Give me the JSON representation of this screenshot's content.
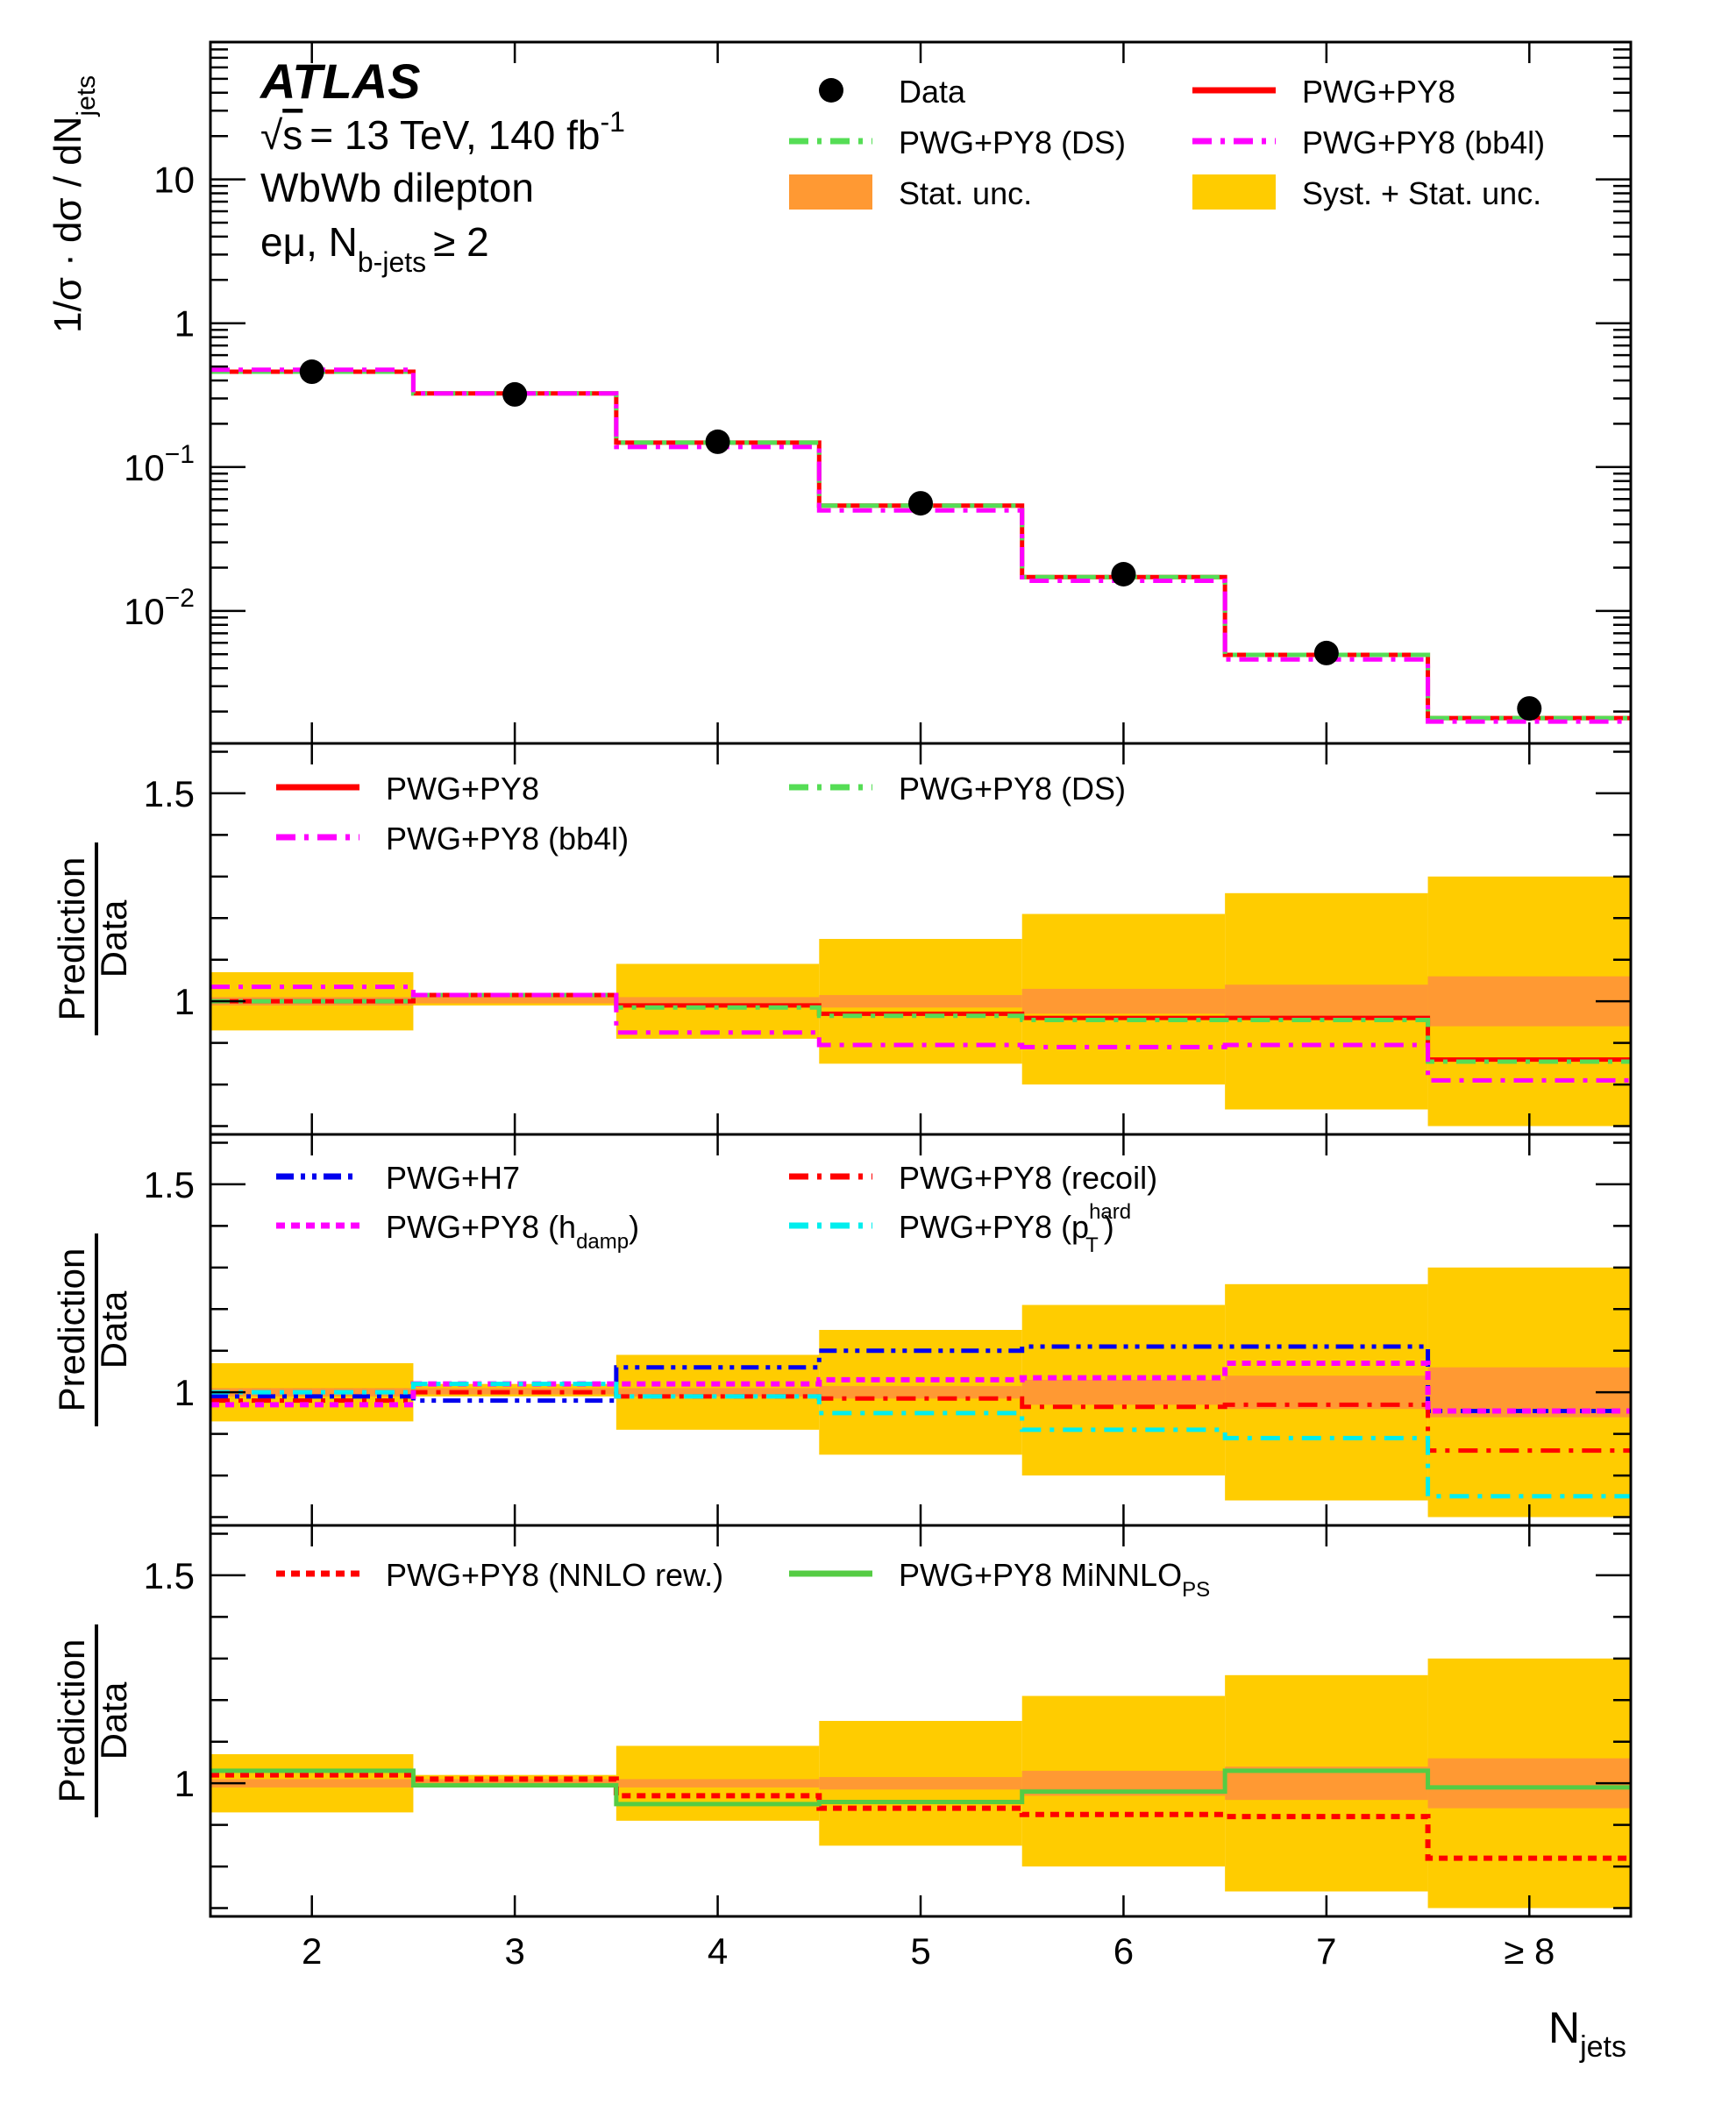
{
  "colors": {
    "data": "#000000",
    "pwg_py8": "#ff0000",
    "ds": "#55dd55",
    "bb4l": "#ff00ff",
    "stat_unc": "#ff9933",
    "syst_stat_unc": "#ffcc00",
    "h7": "#0000ee",
    "recoil": "#ff0000",
    "hdamp": "#ff00ff",
    "pthard": "#00eeee",
    "nnlo": "#ff0000",
    "minnlo": "#55cc44"
  },
  "chart_data": {
    "type": "line",
    "annotations": {
      "experiment": "ATLAS",
      "energy_sqrt": "s",
      "energy_rest": "= 13 TeV, 140 fb",
      "energy_sup": "-1",
      "channel": "WbWb dilepton",
      "selection_main": "eμ, N",
      "selection_sub": "b-jets",
      "selection_rest": "≥ 2"
    },
    "x_axis": {
      "label_main": "N",
      "label_sub": "jets",
      "categories": [
        "2",
        "3",
        "4",
        "5",
        "6",
        "7",
        "≥ 8"
      ]
    },
    "top_panel": {
      "ylabel_main": "1/σ · dσ / dN",
      "ylabel_sub": "jets",
      "yscale": "log",
      "ylim": [
        0.0012,
        90
      ],
      "yticks": [
        {
          "value": 10,
          "label": "10"
        },
        {
          "value": 1,
          "label": "1"
        },
        {
          "value": 0.1,
          "base": "10",
          "exp": "−1"
        },
        {
          "value": 0.01,
          "base": "10",
          "exp": "−2"
        }
      ],
      "legend": [
        {
          "key": "data",
          "label": "Data"
        },
        {
          "key": "pwg_py8",
          "label": "PWG+PY8"
        },
        {
          "key": "ds",
          "label": "PWG+PY8 (DS)"
        },
        {
          "key": "bb4l",
          "label": "PWG+PY8 (bb4l)"
        },
        {
          "key": "stat_unc",
          "label": "Stat. unc."
        },
        {
          "key": "syst_stat_unc",
          "label": "Syst. + Stat. unc."
        }
      ],
      "data": [
        0.46,
        0.32,
        0.15,
        0.056,
        0.018,
        0.0051,
        0.0021
      ],
      "series": [
        {
          "name": "PWG+PY8",
          "key": "pwg_py8",
          "values": [
            0.46,
            0.325,
            0.148,
            0.054,
            0.0172,
            0.00495,
            0.0018
          ]
        },
        {
          "name": "PWG+PY8 (DS)",
          "key": "ds",
          "values": [
            0.46,
            0.325,
            0.148,
            0.054,
            0.0172,
            0.00495,
            0.0018
          ]
        },
        {
          "name": "PWG+PY8 (bb4l)",
          "key": "bb4l",
          "values": [
            0.475,
            0.325,
            0.138,
            0.05,
            0.0162,
            0.0046,
            0.0017
          ]
        }
      ]
    },
    "ratio_panels": [
      {
        "ylabel_top": "Prediction",
        "ylabel_bottom": "Data",
        "ylim": [
          0.68,
          1.62
        ],
        "yticks": [
          {
            "value": 1.5,
            "label": "1.5"
          },
          {
            "value": 1,
            "label": "1"
          }
        ],
        "syst_stat_band": [
          [
            0.93,
            1.07
          ],
          [
            0.99,
            1.02
          ],
          [
            0.91,
            1.09
          ],
          [
            0.85,
            1.15
          ],
          [
            0.8,
            1.21
          ],
          [
            0.74,
            1.26
          ],
          [
            0.7,
            1.3
          ]
        ],
        "stat_band": [
          [
            0.99,
            1.01
          ],
          [
            0.995,
            1.01
          ],
          [
            0.99,
            1.01
          ],
          [
            0.985,
            1.015
          ],
          [
            0.97,
            1.03
          ],
          [
            0.96,
            1.04
          ],
          [
            0.94,
            1.06
          ]
        ],
        "legend": [
          {
            "key": "pwg_py8",
            "label": "PWG+PY8",
            "style": "solid"
          },
          {
            "key": "ds",
            "label": "PWG+PY8 (DS)",
            "style": "dashdot"
          },
          {
            "key": "bb4l",
            "label": "PWG+PY8 (bb4l)",
            "style": "dashdot"
          }
        ],
        "series": [
          {
            "name": "PWG+PY8",
            "key": "pwg_py8",
            "style": "solid",
            "values": [
              1.0,
              1.015,
              0.99,
              0.97,
              0.96,
              0.96,
              0.86
            ]
          },
          {
            "name": "PWG+PY8 (DS)",
            "key": "ds",
            "style": "dashdot",
            "values": [
              1.0,
              1.015,
              0.985,
              0.965,
              0.955,
              0.955,
              0.855
            ]
          },
          {
            "name": "PWG+PY8 (bb4l)",
            "key": "bb4l",
            "style": "dashdot",
            "values": [
              1.035,
              1.015,
              0.925,
              0.895,
              0.89,
              0.895,
              0.81
            ]
          }
        ]
      },
      {
        "ylabel_top": "Prediction",
        "ylabel_bottom": "Data",
        "ylim": [
          0.68,
          1.62
        ],
        "yticks": [
          {
            "value": 1.5,
            "label": "1.5"
          },
          {
            "value": 1,
            "label": "1"
          }
        ],
        "syst_stat_band": [
          [
            0.93,
            1.07
          ],
          [
            0.99,
            1.02
          ],
          [
            0.91,
            1.09
          ],
          [
            0.85,
            1.15
          ],
          [
            0.8,
            1.21
          ],
          [
            0.74,
            1.26
          ],
          [
            0.7,
            1.3
          ]
        ],
        "stat_band": [
          [
            0.99,
            1.01
          ],
          [
            0.995,
            1.01
          ],
          [
            0.99,
            1.01
          ],
          [
            0.985,
            1.015
          ],
          [
            0.97,
            1.03
          ],
          [
            0.96,
            1.04
          ],
          [
            0.94,
            1.06
          ]
        ],
        "legend": [
          {
            "key": "h7",
            "label": "PWG+H7",
            "style": "dashdotdot"
          },
          {
            "key": "recoil",
            "label": "PWG+PY8 (recoil)",
            "style": "dashdot"
          },
          {
            "key": "hdamp",
            "label_main": "PWG+PY8 (h",
            "label_sub": "damp",
            "label_end": ")",
            "style": "dotted"
          },
          {
            "key": "pthard",
            "label_main": "PWG+PY8 (p",
            "label_sub": "T",
            "label_sup": "hard",
            "label_end": ")",
            "style": "dashdot"
          }
        ],
        "series": [
          {
            "name": "PWG+H7",
            "key": "h7",
            "style": "dashdotdot",
            "values": [
              0.99,
              0.98,
              1.06,
              1.1,
              1.11,
              1.11,
              0.955
            ]
          },
          {
            "name": "PWG+PY8 (recoil)",
            "key": "recoil",
            "style": "dashdot",
            "values": [
              0.98,
              1.0,
              0.99,
              0.985,
              0.965,
              0.97,
              0.86
            ]
          },
          {
            "name": "PWG+PY8 (hdamp)",
            "key": "hdamp",
            "style": "dotted",
            "values": [
              0.97,
              1.02,
              1.02,
              1.03,
              1.035,
              1.07,
              0.955
            ]
          },
          {
            "name": "PWG+PY8 (pThard)",
            "key": "pthard",
            "style": "dashdot",
            "values": [
              1.0,
              1.02,
              0.99,
              0.95,
              0.91,
              0.89,
              0.75
            ]
          }
        ]
      },
      {
        "ylabel_top": "Prediction",
        "ylabel_bottom": "Data",
        "ylim": [
          0.68,
          1.62
        ],
        "yticks": [
          {
            "value": 1.5,
            "label": "1.5"
          },
          {
            "value": 1,
            "label": "1"
          }
        ],
        "syst_stat_band": [
          [
            0.93,
            1.07
          ],
          [
            0.99,
            1.02
          ],
          [
            0.91,
            1.09
          ],
          [
            0.85,
            1.15
          ],
          [
            0.8,
            1.21
          ],
          [
            0.74,
            1.26
          ],
          [
            0.7,
            1.3
          ]
        ],
        "stat_band": [
          [
            0.99,
            1.01
          ],
          [
            0.995,
            1.01
          ],
          [
            0.99,
            1.01
          ],
          [
            0.985,
            1.015
          ],
          [
            0.97,
            1.03
          ],
          [
            0.96,
            1.04
          ],
          [
            0.94,
            1.06
          ]
        ],
        "legend": [
          {
            "key": "nnlo",
            "label": "PWG+PY8 (NNLO rew.)",
            "style": "dotted"
          },
          {
            "key": "minnlo",
            "label_main": "PWG+PY8 MiNNLO",
            "label_sub": "PS",
            "style": "solid"
          }
        ],
        "series": [
          {
            "name": "PWG+PY8 (NNLO rew.)",
            "key": "nnlo",
            "style": "dotted",
            "values": [
              1.02,
              1.01,
              0.97,
              0.94,
              0.925,
              0.92,
              0.82
            ]
          },
          {
            "name": "PWG+PY8 MiNNLOPS",
            "key": "minnlo",
            "style": "solid",
            "values": [
              1.03,
              0.995,
              0.95,
              0.955,
              0.98,
              1.03,
              0.99
            ]
          }
        ]
      }
    ]
  }
}
